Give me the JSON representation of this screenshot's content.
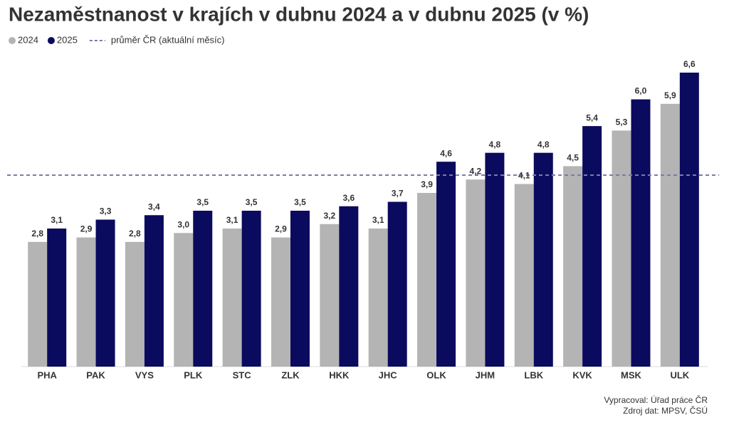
{
  "chart_data": {
    "type": "bar",
    "title": "Nezaměstnanost v krajích v dubnu 2024 a v dubnu 2025 (v %)",
    "categories": [
      "PHA",
      "PAK",
      "VYS",
      "PLK",
      "STC",
      "ZLK",
      "HKK",
      "JHC",
      "OLK",
      "JHM",
      "LBK",
      "KVK",
      "MSK",
      "ULK"
    ],
    "series": [
      {
        "name": "2024",
        "color": "#b4b4b4",
        "values": [
          2.8,
          2.9,
          2.8,
          3.0,
          3.1,
          2.9,
          3.2,
          3.1,
          3.9,
          4.2,
          4.1,
          4.5,
          5.3,
          5.9
        ],
        "value_labels": [
          "2,8",
          "2,9",
          "2,8",
          "3,0",
          "3,1",
          "2,9",
          "3,2",
          "3,1",
          "3,9",
          "4,2",
          "4,1",
          "4,5",
          "5,3",
          "5,9"
        ]
      },
      {
        "name": "2025",
        "color": "#0a0a5e",
        "values": [
          3.1,
          3.3,
          3.4,
          3.5,
          3.5,
          3.5,
          3.6,
          3.7,
          4.6,
          4.8,
          4.8,
          5.4,
          6.0,
          6.6
        ],
        "value_labels": [
          "3,1",
          "3,3",
          "3,4",
          "3,5",
          "3,5",
          "3,5",
          "3,6",
          "3,7",
          "4,6",
          "4,8",
          "4,8",
          "5,4",
          "6,0",
          "6,6"
        ]
      }
    ],
    "reference_line": {
      "label": "průměr ČR (aktuální měsíc)",
      "value": 4.3,
      "color": "#7b7ba8"
    },
    "ylim": [
      0,
      7
    ],
    "notes": [
      "Vypracoval: Úřad práce ČR",
      "Zdroj dat: MPSV, ČSÚ"
    ]
  }
}
